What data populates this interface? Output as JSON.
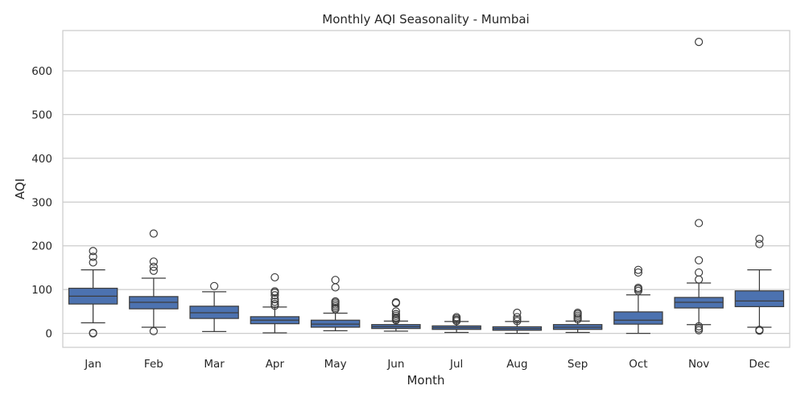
{
  "chart_data": {
    "type": "box",
    "title": "Monthly AQI Seasonality - Mumbai",
    "xlabel": "Month",
    "ylabel": "AQI",
    "ylim": [
      -32,
      692
    ],
    "yticks": [
      0,
      100,
      200,
      300,
      400,
      500,
      600
    ],
    "grid": "horizontal",
    "box_color": "#4c72b0",
    "categories": [
      "Jan",
      "Feb",
      "Mar",
      "Apr",
      "May",
      "Jun",
      "Jul",
      "Aug",
      "Sep",
      "Oct",
      "Nov",
      "Dec"
    ],
    "boxes": [
      {
        "whisker_low": 24,
        "q1": 67,
        "median": 85,
        "q3": 103,
        "whisker_high": 145,
        "outliers": [
          1,
          0,
          162,
          175,
          188
        ]
      },
      {
        "whisker_low": 14,
        "q1": 56,
        "median": 71,
        "q3": 84,
        "whisker_high": 126,
        "outliers": [
          5,
          143,
          152,
          164,
          228
        ]
      },
      {
        "whisker_low": 4,
        "q1": 34,
        "median": 47,
        "q3": 62,
        "whisker_high": 95,
        "outliers": [
          108
        ]
      },
      {
        "whisker_low": 1,
        "q1": 22,
        "median": 30,
        "q3": 38,
        "whisker_high": 60,
        "outliers": [
          63,
          67,
          72,
          78,
          87,
          93,
          96,
          128
        ]
      },
      {
        "whisker_low": 6,
        "q1": 14,
        "median": 21,
        "q3": 30,
        "whisker_high": 46,
        "outliers": [
          55,
          58,
          62,
          66,
          70,
          73,
          105,
          122
        ]
      },
      {
        "whisker_low": 5,
        "q1": 11,
        "median": 15,
        "q3": 20,
        "whisker_high": 28,
        "outliers": [
          30,
          33,
          36,
          40,
          44,
          50,
          69,
          71
        ]
      },
      {
        "whisker_low": 2,
        "q1": 9,
        "median": 13,
        "q3": 17,
        "whisker_high": 27,
        "outliers": [
          28,
          31,
          34,
          37
        ]
      },
      {
        "whisker_low": 0,
        "q1": 7,
        "median": 11,
        "q3": 15,
        "whisker_high": 27,
        "outliers": [
          28,
          32,
          37,
          47
        ]
      },
      {
        "whisker_low": 2,
        "q1": 9,
        "median": 14,
        "q3": 20,
        "whisker_high": 28,
        "outliers": [
          32,
          36,
          40,
          44,
          47
        ]
      },
      {
        "whisker_low": 0,
        "q1": 21,
        "median": 30,
        "q3": 49,
        "whisker_high": 88,
        "outliers": [
          97,
          101,
          104,
          139,
          145
        ]
      },
      {
        "whisker_low": 20,
        "q1": 58,
        "median": 71,
        "q3": 82,
        "whisker_high": 115,
        "outliers": [
          7,
          11,
          16,
          123,
          139,
          167,
          252,
          666
        ]
      },
      {
        "whisker_low": 14,
        "q1": 61,
        "median": 74,
        "q3": 97,
        "whisker_high": 145,
        "outliers": [
          6,
          8,
          204,
          216
        ]
      }
    ]
  }
}
